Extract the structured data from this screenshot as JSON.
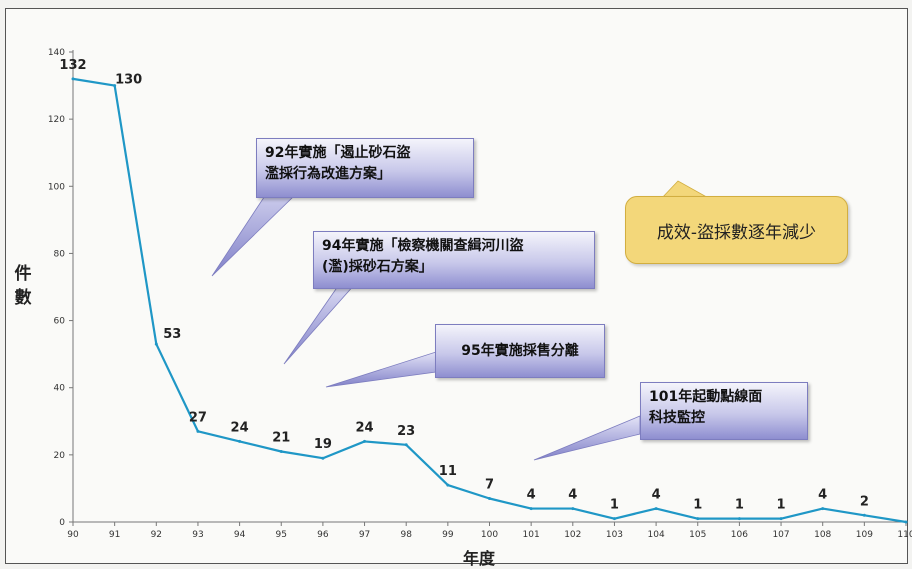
{
  "chart_data": {
    "type": "line",
    "title": "",
    "xlabel": "年度",
    "ylabel": "件數",
    "ylim": [
      0,
      140
    ],
    "yticks": [
      0,
      20,
      40,
      60,
      80,
      100,
      120,
      140
    ],
    "x": [
      90,
      91,
      92,
      93,
      94,
      95,
      96,
      97,
      98,
      99,
      100,
      101,
      102,
      103,
      104,
      105,
      106,
      107,
      108,
      109,
      110
    ],
    "values": [
      132,
      130,
      53,
      27,
      24,
      21,
      19,
      24,
      23,
      11,
      7,
      4,
      4,
      1,
      4,
      1,
      1,
      1,
      4,
      2,
      0
    ],
    "data_labels": [
      "132",
      "130",
      "53",
      "27",
      "24",
      "21",
      "19",
      "24",
      "23",
      "11",
      "7",
      "4",
      "4",
      "1",
      "4",
      "1",
      "1",
      "1",
      "4",
      "2",
      ""
    ],
    "line_color": "#1f97c6",
    "grid": false,
    "annotations": {
      "a92_line1": "92年實施「遏止砂石盜",
      "a92_line2": "濫採行為改進方案」",
      "a94_line1": "94年實施「檢察機關查緝河川盜",
      "a94_line2": "(濫)採砂石方案」",
      "a95": "95年實施採售分離",
      "a101_line1": "101年起動點線面",
      "a101_line2": "科技監控",
      "result": "成效-盜採數逐年減少"
    }
  },
  "ylabel_chars": [
    "件",
    "數"
  ]
}
